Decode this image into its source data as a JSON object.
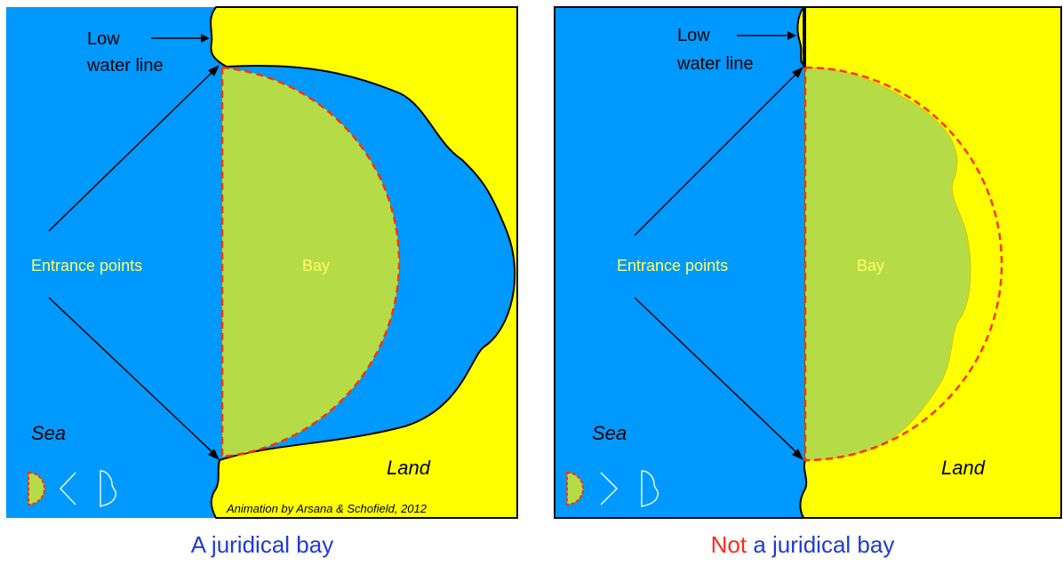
{
  "left_panel": {
    "low_water_line_1": "Low",
    "low_water_line_2": "water line",
    "entrance_points": "Entrance points",
    "bay": "Bay",
    "sea": "Sea",
    "land": "Land",
    "credit": "Animation by Arsana & Schofield, 2012",
    "caption": "A juridical bay"
  },
  "right_panel": {
    "low_water_line_1": "Low",
    "low_water_line_2": "water line",
    "entrance_points": "Entrance points",
    "bay": "Bay",
    "sea": "Sea",
    "land": "Land",
    "caption_neg": "Not",
    "caption_rest": " a juridical bay"
  },
  "colors": {
    "sea": "#0099ff",
    "land": "#ffff00",
    "bay": "#b5dc47",
    "semicircle": "#ff3300",
    "label_yellow": "#ffff66",
    "caption_blue": "#1f3ad9",
    "caption_red": "#ff2a1a"
  }
}
